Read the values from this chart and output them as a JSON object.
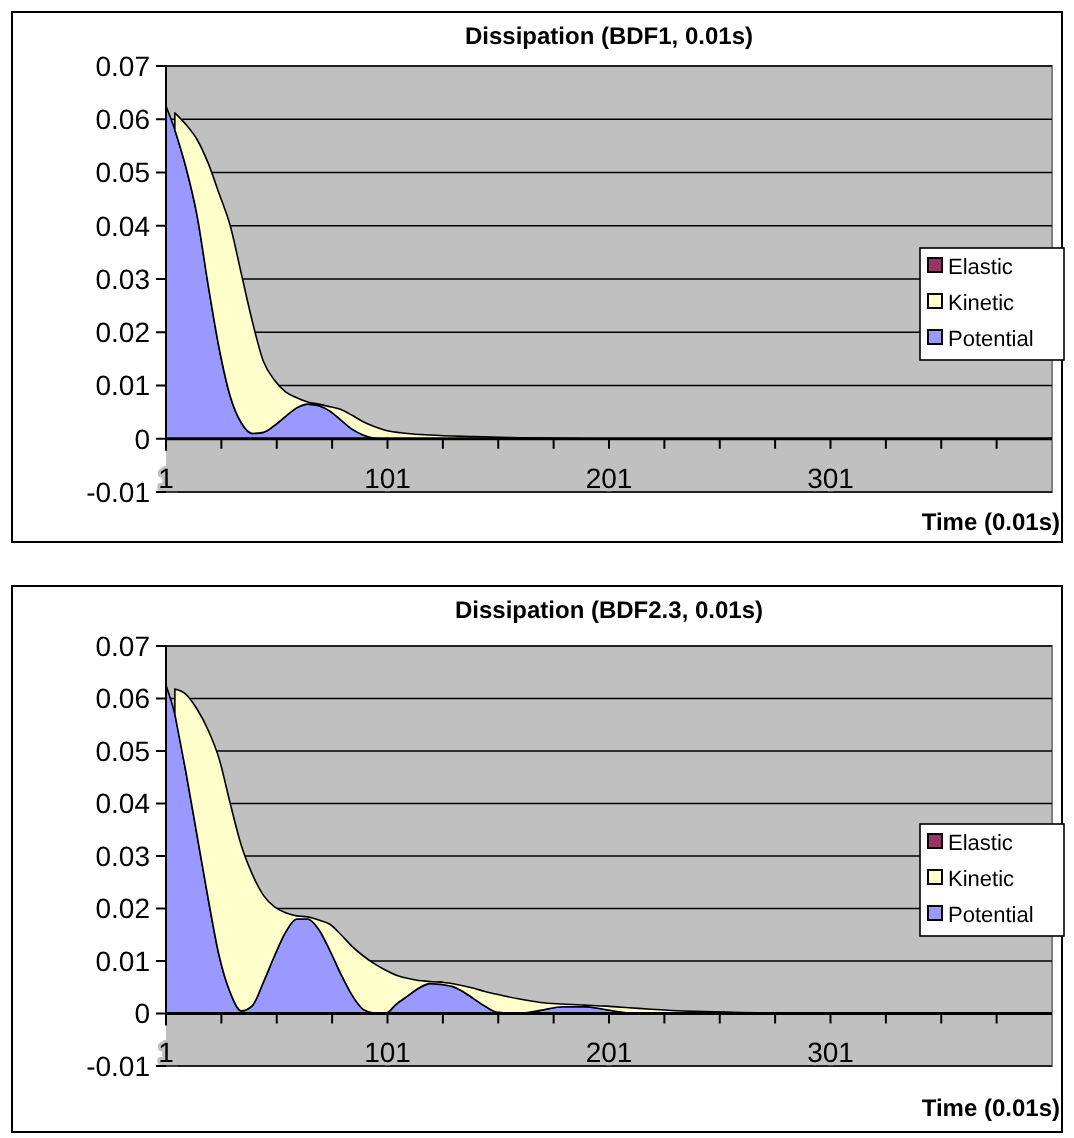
{
  "chart_data": [
    {
      "type": "area",
      "stacked": true,
      "title": "Dissipation (BDF1, 0.01s)",
      "xlabel": "Time (0.01s)",
      "x": [
        1,
        5,
        10,
        15,
        20,
        25,
        30,
        35,
        40,
        45,
        50,
        55,
        60,
        65,
        70,
        75,
        80,
        85,
        90,
        95,
        100,
        110,
        120,
        140,
        160,
        180,
        200,
        250,
        300,
        350,
        400
      ],
      "xlim": [
        1,
        401
      ],
      "xticks": [
        1,
        {
          "value": 26,
          "label": null
        },
        {
          "value": 51,
          "label": null
        },
        {
          "value": 76,
          "label": null
        },
        101,
        {
          "value": 126,
          "label": null
        },
        {
          "value": 151,
          "label": null
        },
        {
          "value": 176,
          "label": null
        },
        201,
        {
          "value": 226,
          "label": null
        },
        {
          "value": 251,
          "label": null
        },
        {
          "value": 276,
          "label": null
        },
        301,
        {
          "value": 326,
          "label": null
        },
        {
          "value": 351,
          "label": null
        },
        {
          "value": 376,
          "label": null
        }
      ],
      "ylim": [
        -0.01,
        0.07
      ],
      "yticks": [
        -0.01,
        0,
        0.01,
        0.02,
        0.03,
        0.04,
        0.05,
        0.06,
        0.07
      ],
      "grid": "y",
      "legend": "right",
      "series": [
        {
          "name": "Potential",
          "color": "#9999ff",
          "values": [
            0.0625,
            0.058,
            0.051,
            0.042,
            0.029,
            0.017,
            0.008,
            0.003,
            0.001,
            0.0012,
            0.0025,
            0.0042,
            0.0058,
            0.0065,
            0.0062,
            0.0052,
            0.0035,
            0.0018,
            0.0007,
            0.0001,
            0,
            0,
            0,
            0,
            0,
            0,
            0,
            0,
            0,
            0,
            0
          ]
        },
        {
          "name": "Kinetic",
          "color": "#ffffcc",
          "values": [
            null,
            0.0032,
            0.008,
            0.0142,
            0.0228,
            0.029,
            0.032,
            0.028,
            0.021,
            0.0133,
            0.0085,
            0.0046,
            0.0019,
            0.0004,
            0.0003,
            0.0008,
            0.002,
            0.0026,
            0.0025,
            0.0022,
            0.0016,
            0.001,
            0.0007,
            0.0004,
            0.0002,
            0.0001,
            0,
            0,
            0,
            0,
            0
          ]
        },
        {
          "name": "Elastic",
          "color": "#993366",
          "values": [
            null,
            null,
            null,
            null,
            null,
            null,
            null,
            null,
            null,
            null,
            null,
            null,
            null,
            null,
            null,
            null,
            null,
            null,
            null,
            null,
            null,
            null,
            null,
            null,
            null,
            null,
            null,
            null,
            null,
            null,
            null
          ]
        }
      ]
    },
    {
      "type": "area",
      "stacked": true,
      "title": "Dissipation (BDF2.3, 0.01s)",
      "xlabel": "Time (0.01s)",
      "x": [
        1,
        5,
        10,
        15,
        20,
        25,
        30,
        35,
        40,
        45,
        50,
        55,
        60,
        65,
        70,
        75,
        80,
        85,
        90,
        95,
        100,
        105,
        110,
        115,
        120,
        125,
        130,
        135,
        140,
        145,
        150,
        160,
        170,
        180,
        190,
        200,
        210,
        220,
        240,
        260,
        280,
        300,
        350,
        400
      ],
      "xlim": [
        1,
        401
      ],
      "xticks": [
        1,
        {
          "value": 26,
          "label": null
        },
        {
          "value": 51,
          "label": null
        },
        {
          "value": 76,
          "label": null
        },
        101,
        {
          "value": 126,
          "label": null
        },
        {
          "value": 151,
          "label": null
        },
        {
          "value": 176,
          "label": null
        },
        201,
        {
          "value": 226,
          "label": null
        },
        {
          "value": 251,
          "label": null
        },
        {
          "value": 276,
          "label": null
        },
        301,
        {
          "value": 326,
          "label": null
        },
        {
          "value": 351,
          "label": null
        },
        {
          "value": 376,
          "label": null
        }
      ],
      "ylim": [
        -0.01,
        0.07
      ],
      "yticks": [
        -0.01,
        0,
        0.01,
        0.02,
        0.03,
        0.04,
        0.05,
        0.06,
        0.07
      ],
      "grid": "y",
      "legend": "right",
      "series": [
        {
          "name": "Potential",
          "color": "#9999ff",
          "values": [
            0.0625,
            0.057,
            0.046,
            0.034,
            0.022,
            0.011,
            0.004,
            0.0005,
            0.0015,
            0.006,
            0.011,
            0.0155,
            0.018,
            0.018,
            0.016,
            0.012,
            0.0075,
            0.0035,
            0.0008,
            0.0001,
            0,
            0.0018,
            0.0033,
            0.0048,
            0.0057,
            0.006,
            0.0052,
            0.0042,
            0.0028,
            0.0014,
            0.0003,
            0,
            0.0006,
            0.0013,
            0.0013,
            0.0007,
            0.0001,
            0,
            0,
            0,
            0,
            0,
            0,
            0
          ]
        },
        {
          "name": "Kinetic",
          "color": "#ffffcc",
          "values": [
            null,
            0.0048,
            0.0148,
            0.024,
            0.032,
            0.0375,
            0.036,
            0.0315,
            0.025,
            0.0165,
            0.0093,
            0.0037,
            0.0006,
            0.0004,
            0.0018,
            0.005,
            0.0075,
            0.0093,
            0.0102,
            0.0094,
            0.0083,
            0.0055,
            0.0034,
            0.0015,
            0.0004,
            null,
            0.0005,
            0.0011,
            0.002,
            0.0028,
            0.0034,
            0.0028,
            0.0015,
            0.0005,
            0.0003,
            0.0007,
            0.001,
            0.0008,
            0.0004,
            0.0002,
            0.0001,
            0,
            0,
            0
          ]
        },
        {
          "name": "Elastic",
          "color": "#993366",
          "values": [
            null,
            null,
            null,
            null,
            null,
            null,
            null,
            null,
            null,
            null,
            null,
            null,
            null,
            null,
            null,
            null,
            null,
            null,
            null,
            null,
            null,
            null,
            null,
            null,
            null,
            null,
            null,
            null,
            null,
            null,
            null,
            null,
            null,
            null,
            null,
            null,
            null,
            null,
            null,
            null,
            null,
            null,
            null,
            null
          ]
        }
      ]
    }
  ]
}
